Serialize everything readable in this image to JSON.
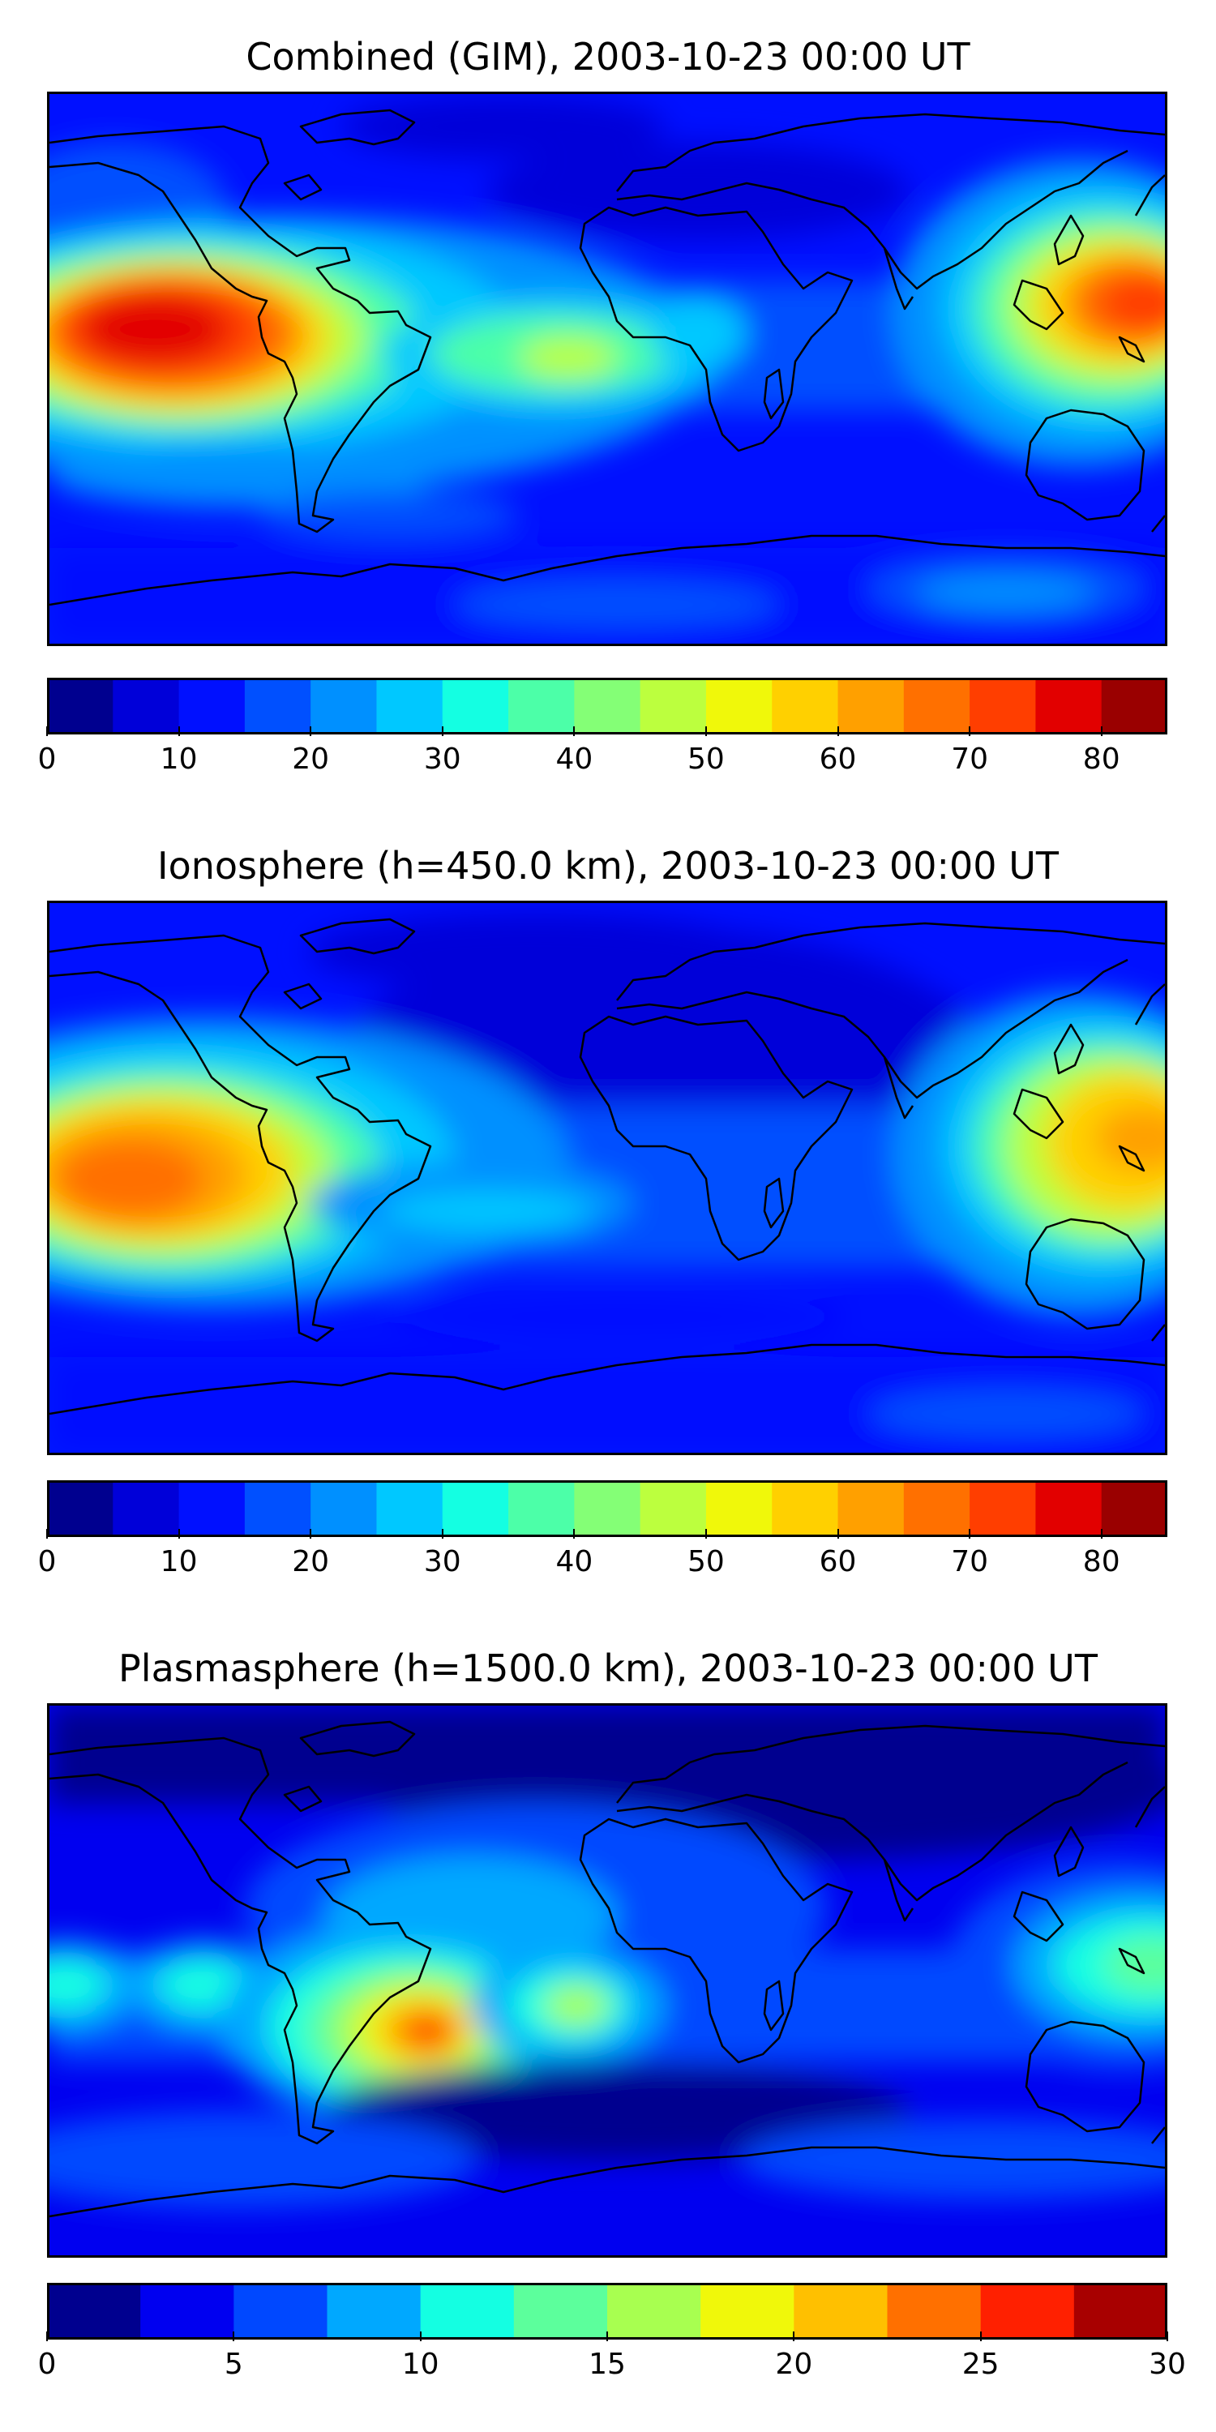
{
  "panels": [
    {
      "id": "combined",
      "title": "Combined (GIM), 2003-10-23 00:00 UT",
      "colorbar": {
        "min": 0,
        "max": 85,
        "ticks": [
          "0",
          "10",
          "20",
          "30",
          "40",
          "50",
          "60",
          "70",
          "80"
        ],
        "tick_values": [
          0,
          10,
          20,
          30,
          40,
          50,
          60,
          70,
          80
        ],
        "colors": [
          "#00008f",
          "#0000d9",
          "#0010ff",
          "#0050ff",
          "#0090ff",
          "#00c8ff",
          "#14ffe2",
          "#4cffa8",
          "#84ff76",
          "#bcff3e",
          "#f0f80a",
          "#ffd000",
          "#ffa000",
          "#ff7000",
          "#ff3e00",
          "#e20000",
          "#9a0000"
        ]
      }
    },
    {
      "id": "ionosphere",
      "title": "Ionosphere  (h=450.0 km), 2003-10-23 00:00 UT",
      "colorbar": {
        "min": 0,
        "max": 85,
        "ticks": [
          "0",
          "10",
          "20",
          "30",
          "40",
          "50",
          "60",
          "70",
          "80"
        ],
        "tick_values": [
          0,
          10,
          20,
          30,
          40,
          50,
          60,
          70,
          80
        ],
        "colors": [
          "#00008f",
          "#0000d9",
          "#0010ff",
          "#0050ff",
          "#0090ff",
          "#00c8ff",
          "#14ffe2",
          "#4cffa8",
          "#84ff76",
          "#bcff3e",
          "#f0f80a",
          "#ffd000",
          "#ffa000",
          "#ff7000",
          "#ff3e00",
          "#e20000",
          "#9a0000"
        ]
      }
    },
    {
      "id": "plasmasphere",
      "title": "Plasmasphere (h=1500.0 km), 2003-10-23 00:00 UT",
      "colorbar": {
        "min": 0,
        "max": 30,
        "ticks": [
          "0",
          "5",
          "10",
          "15",
          "20",
          "25",
          "30"
        ],
        "tick_values": [
          0,
          5,
          10,
          15,
          20,
          25,
          30
        ],
        "colors": [
          "#00008f",
          "#0000f0",
          "#0048ff",
          "#00a8ff",
          "#14ffe2",
          "#5cff9c",
          "#a8ff50",
          "#f0f80a",
          "#ffc000",
          "#ff7000",
          "#ff2000",
          "#a80000"
        ]
      }
    }
  ]
}
